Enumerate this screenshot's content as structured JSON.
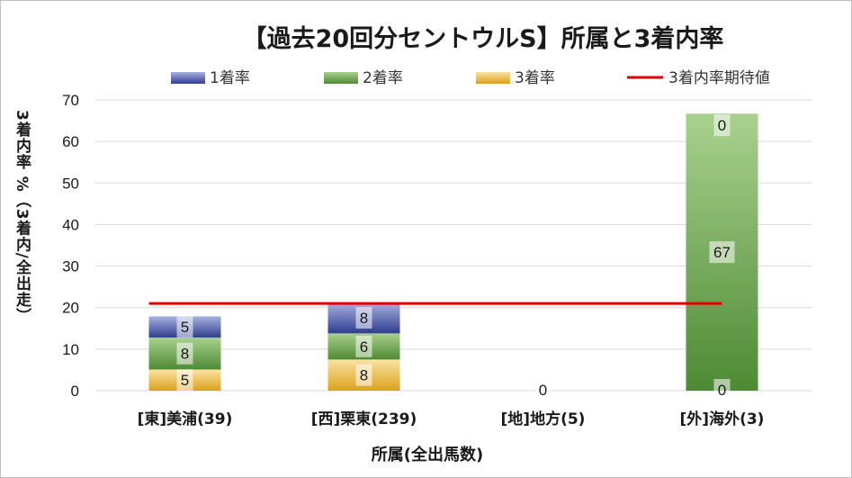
{
  "chart_data": {
    "type": "bar",
    "stacked": true,
    "title": "【過去20回分セントウルS】所属と3着内率",
    "xlabel": "所属(全出馬数)",
    "ylabel": "3着内率 %（3着内/全出走）",
    "ylim": [
      0,
      70
    ],
    "yticks": [
      "0",
      "10",
      "20",
      "30",
      "40",
      "50",
      "60",
      "70"
    ],
    "grid": true,
    "legend_position": "top",
    "categories": [
      "[東]美浦(39)",
      "[西]栗東(239)",
      "[地]地方(5)",
      "[外]海外(3)"
    ],
    "series": [
      {
        "name": "3着率",
        "values": [
          5.1,
          7.5,
          0,
          0
        ],
        "labels": [
          "5",
          "8",
          "",
          "0"
        ],
        "color": "#e9b94a"
      },
      {
        "name": "2着率",
        "values": [
          7.7,
          6.3,
          0,
          66.7
        ],
        "labels": [
          "8",
          "6",
          "0",
          "67"
        ],
        "color": "#6fa04b"
      },
      {
        "name": "1着率",
        "values": [
          5.1,
          7.5,
          0,
          0
        ],
        "labels": [
          "5",
          "8",
          "",
          "0"
        ],
        "color": "#5a68ad"
      }
    ],
    "legend_order": [
      "1着率",
      "2着率",
      "3着率",
      "3着内率期待値"
    ],
    "expected_line": {
      "name": "3着内率期待値",
      "value": 21,
      "color": "#e00000"
    }
  }
}
